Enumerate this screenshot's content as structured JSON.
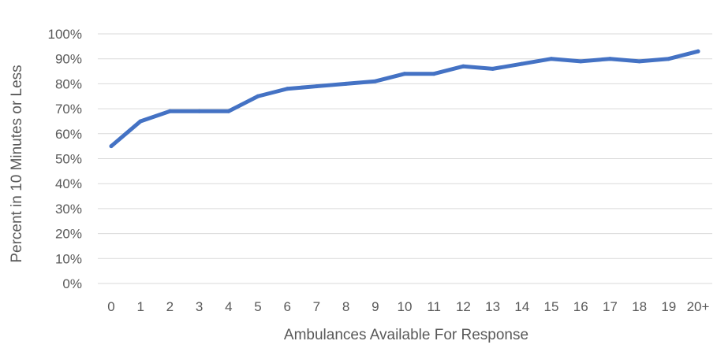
{
  "chart_data": {
    "type": "line",
    "title": "",
    "xlabel": "Ambulances Available For Response",
    "ylabel": "Percent in 10 Minutes or Less",
    "categories": [
      "0",
      "1",
      "2",
      "3",
      "4",
      "5",
      "6",
      "7",
      "8",
      "9",
      "10",
      "11",
      "12",
      "13",
      "14",
      "15",
      "16",
      "17",
      "18",
      "19",
      "20+"
    ],
    "series": [
      {
        "values": [
          55,
          65,
          69,
          69,
          69,
          75,
          78,
          79,
          80,
          81,
          84,
          84,
          87,
          86,
          88,
          90,
          89,
          90,
          89,
          90,
          93
        ],
        "color": "#4472C4"
      }
    ],
    "ylim": [
      0,
      100
    ],
    "yticks": [
      0,
      10,
      20,
      30,
      40,
      50,
      60,
      70,
      80,
      90,
      100
    ],
    "ytick_labels": [
      "0%",
      "10%",
      "20%",
      "30%",
      "40%",
      "50%",
      "60%",
      "70%",
      "80%",
      "90%",
      "100%"
    ],
    "grid": true,
    "legend": "none",
    "gridline_color": "#D9D9D9",
    "text_color": "#595959"
  }
}
